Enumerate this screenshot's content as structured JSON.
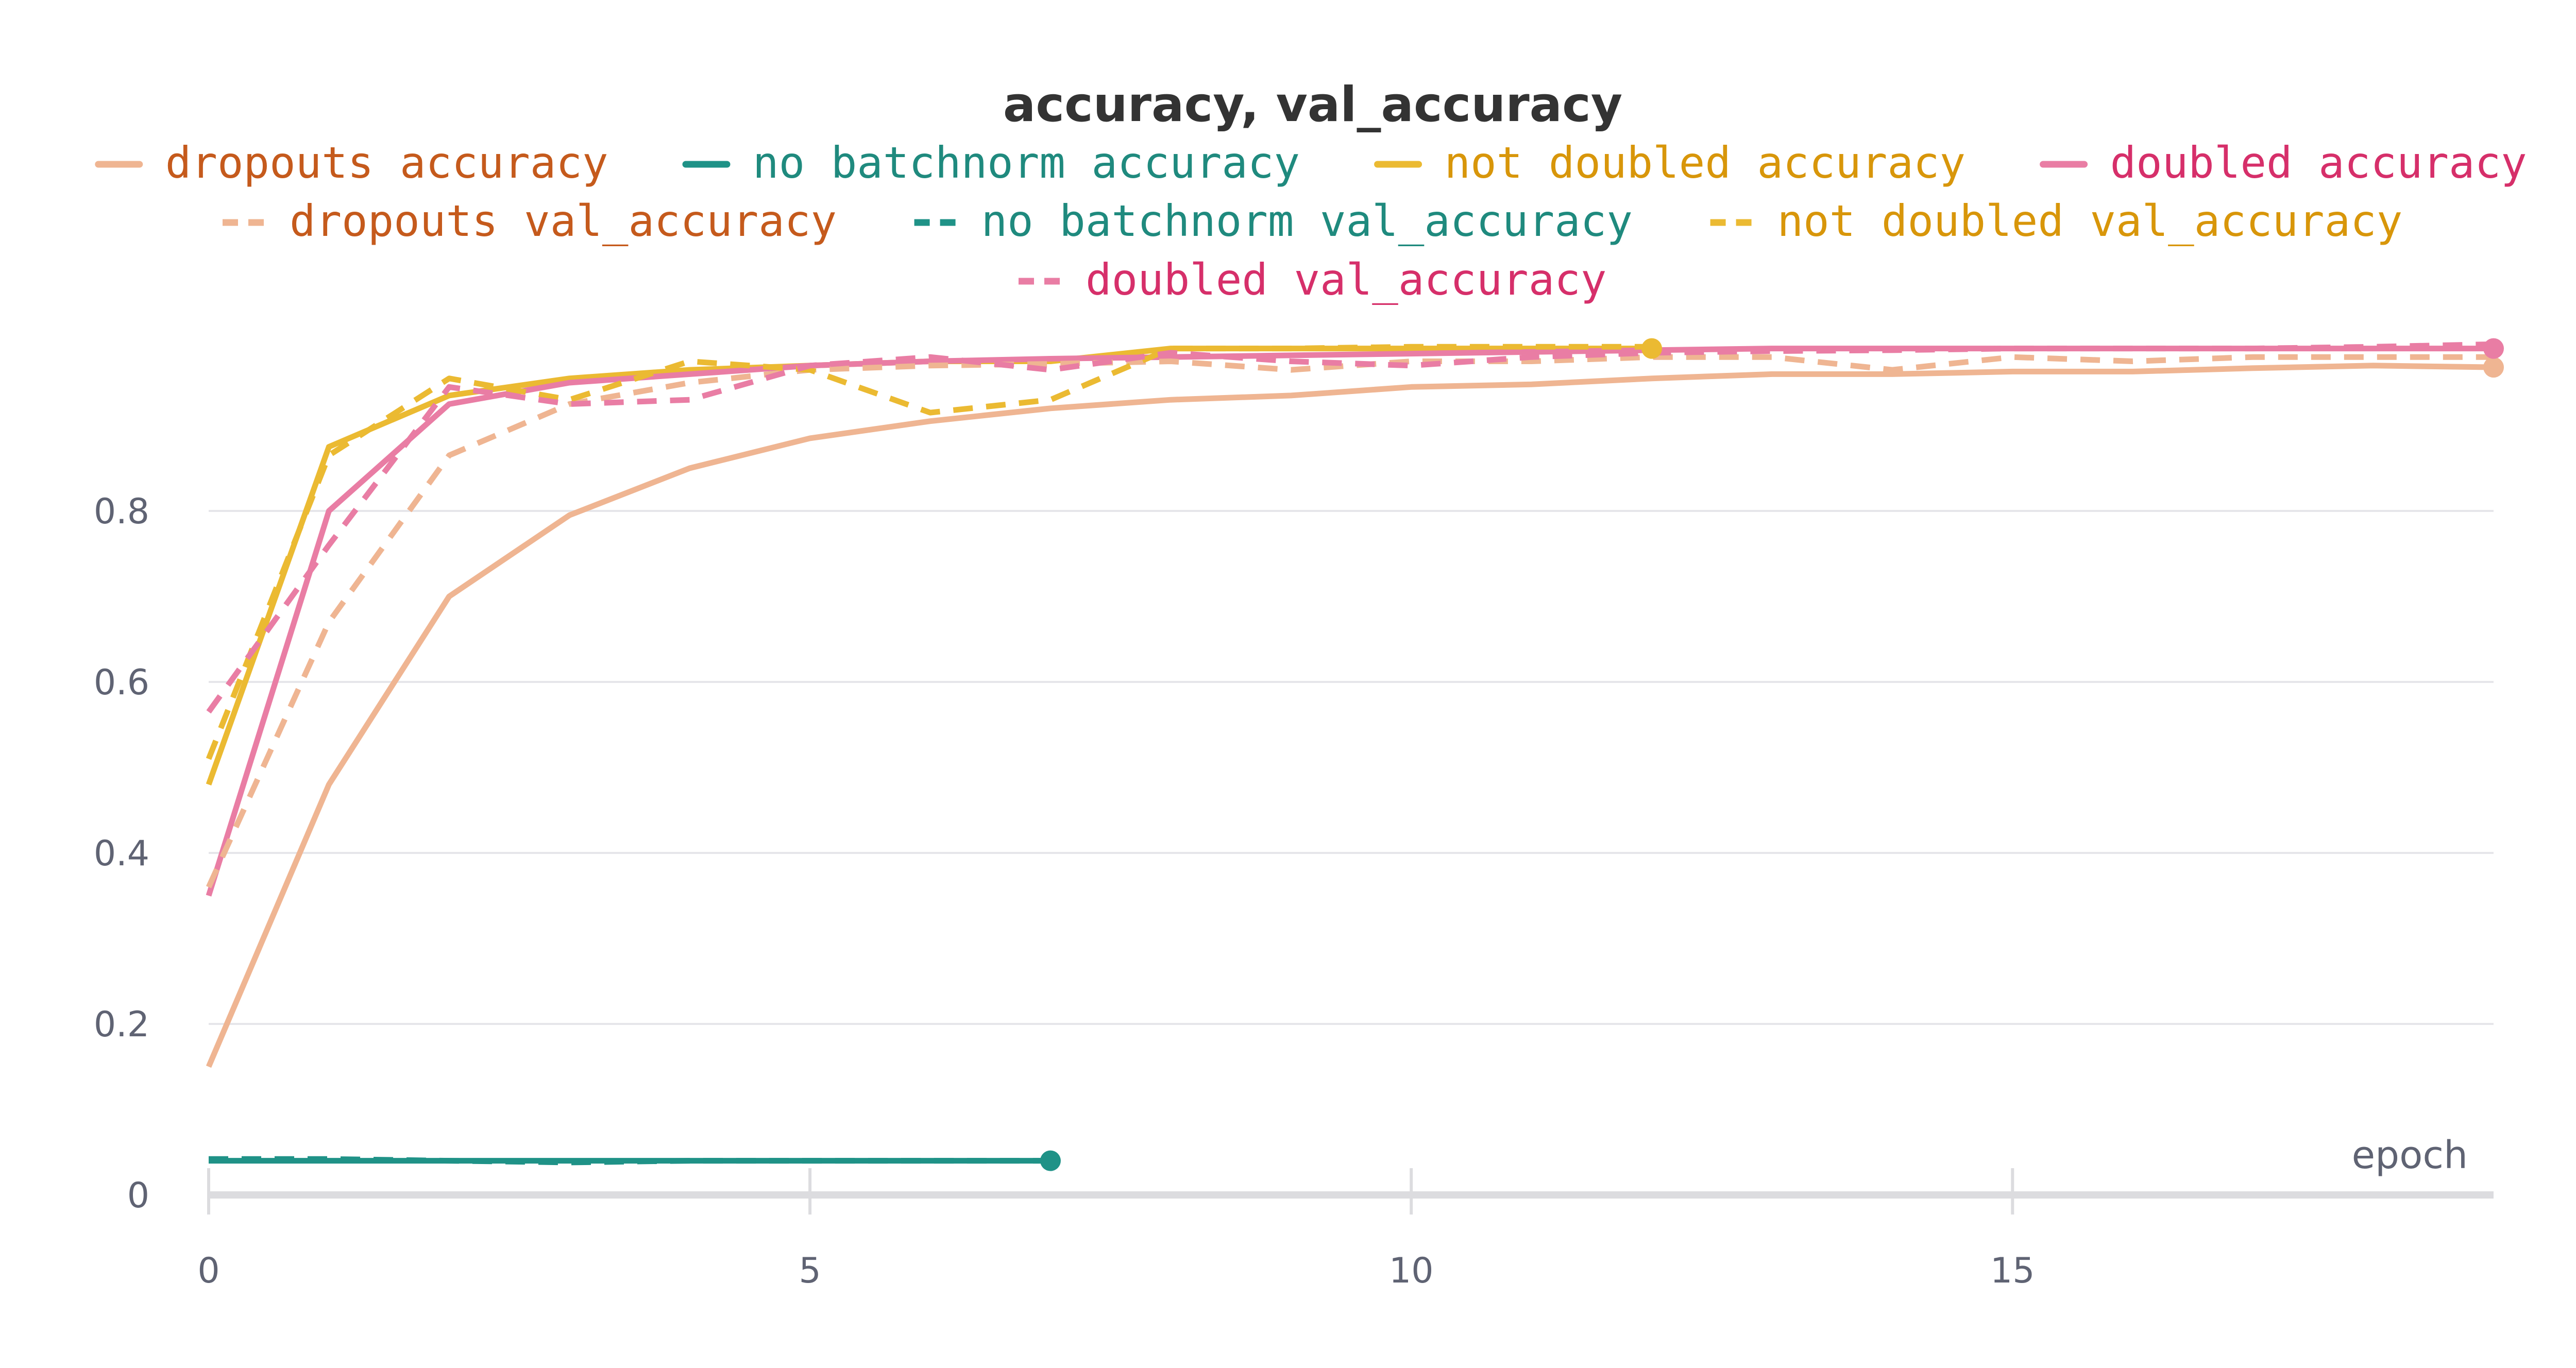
{
  "chart_data": {
    "type": "line",
    "title": "accuracy, val_accuracy",
    "xlabel": "epoch",
    "ylabel": "",
    "xlim": [
      0,
      19
    ],
    "ylim": [
      0,
      1.0
    ],
    "xticks": [
      0,
      5,
      10,
      15
    ],
    "yticks": [
      0,
      0.2,
      0.4,
      0.6,
      0.8
    ],
    "xtick_labels": [
      "0",
      "5",
      "10",
      "15"
    ],
    "ytick_labels": [
      "0",
      "0.2",
      "0.4",
      "0.6",
      "0.8"
    ],
    "grid": "horizontal",
    "legend_position": "top-center",
    "series": [
      {
        "name": "dropouts accuracy",
        "color": "#efb592",
        "text_color": "#c55a1c",
        "dash": "solid",
        "x": [
          0,
          1,
          2,
          3,
          4,
          5,
          6,
          7,
          8,
          9,
          10,
          11,
          12,
          13,
          14,
          15,
          16,
          17,
          18,
          19
        ],
        "values": [
          0.15,
          0.48,
          0.7,
          0.795,
          0.85,
          0.885,
          0.905,
          0.92,
          0.93,
          0.935,
          0.945,
          0.948,
          0.955,
          0.96,
          0.96,
          0.963,
          0.963,
          0.967,
          0.97,
          0.968
        ],
        "end_marker": true
      },
      {
        "name": "no batchnorm accuracy",
        "color": "#1f9287",
        "text_color": "#1f8a7e",
        "dash": "solid",
        "x": [
          0,
          1,
          2,
          3,
          4,
          5,
          6,
          7
        ],
        "values": [
          0.04,
          0.04,
          0.04,
          0.04,
          0.04,
          0.04,
          0.04,
          0.04
        ],
        "end_marker": true
      },
      {
        "name": "not doubled accuracy",
        "color": "#ebba32",
        "text_color": "#d8960a",
        "dash": "solid",
        "x": [
          0,
          1,
          2,
          3,
          4,
          5,
          6,
          7,
          8,
          9,
          10,
          11,
          12
        ],
        "values": [
          0.48,
          0.875,
          0.935,
          0.955,
          0.965,
          0.97,
          0.975,
          0.975,
          0.99,
          0.99,
          0.99,
          0.99,
          0.99
        ],
        "end_marker": true
      },
      {
        "name": "doubled accuracy",
        "color": "#e97da4",
        "text_color": "#d62f6a",
        "dash": "solid",
        "x": [
          0,
          1,
          2,
          3,
          4,
          5,
          6,
          7,
          8,
          9,
          10,
          11,
          12,
          13,
          14,
          15,
          16,
          17,
          18,
          19
        ],
        "values": [
          0.35,
          0.8,
          0.925,
          0.95,
          0.96,
          0.97,
          0.975,
          0.978,
          0.98,
          0.982,
          0.984,
          0.986,
          0.988,
          0.99,
          0.99,
          0.99,
          0.99,
          0.99,
          0.99,
          0.99
        ],
        "end_marker": true
      },
      {
        "name": "dropouts val_accuracy",
        "color": "#efb592",
        "text_color": "#c55a1c",
        "dash": "dashed",
        "x": [
          0,
          1,
          2,
          3,
          4,
          5,
          6,
          7,
          8,
          9,
          10,
          11,
          12,
          13,
          14,
          15,
          16,
          17,
          18,
          19
        ],
        "values": [
          0.36,
          0.67,
          0.865,
          0.925,
          0.95,
          0.965,
          0.97,
          0.972,
          0.975,
          0.965,
          0.975,
          0.975,
          0.98,
          0.98,
          0.965,
          0.98,
          0.975,
          0.98,
          0.98,
          0.98
        ],
        "end_marker": false
      },
      {
        "name": "no batchnorm val_accuracy",
        "color": "#1f9287",
        "text_color": "#1f8a7e",
        "dash": "dashed",
        "x": [
          0,
          1,
          2,
          3,
          4,
          5,
          6,
          7
        ],
        "values": [
          0.042,
          0.042,
          0.04,
          0.038,
          0.04,
          0.04,
          0.04,
          0.04
        ],
        "end_marker": false
      },
      {
        "name": "not doubled val_accuracy",
        "color": "#ebba32",
        "text_color": "#d8960a",
        "dash": "dashed",
        "x": [
          0,
          1,
          2,
          3,
          4,
          5,
          6,
          7,
          8,
          9,
          10,
          11,
          12
        ],
        "values": [
          0.51,
          0.865,
          0.955,
          0.93,
          0.975,
          0.965,
          0.915,
          0.93,
          0.99,
          0.99,
          0.992,
          0.992,
          0.992
        ],
        "end_marker": false
      },
      {
        "name": "doubled val_accuracy",
        "color": "#e97da4",
        "text_color": "#d62f6a",
        "dash": "dashed",
        "x": [
          0,
          1,
          2,
          3,
          4,
          5,
          6,
          7,
          8,
          9,
          10,
          11,
          12,
          13,
          14,
          15,
          16,
          17,
          18,
          19
        ],
        "values": [
          0.565,
          0.76,
          0.945,
          0.925,
          0.93,
          0.97,
          0.98,
          0.965,
          0.985,
          0.975,
          0.97,
          0.98,
          0.985,
          0.987,
          0.988,
          0.99,
          0.99,
          0.99,
          0.992,
          0.995
        ],
        "end_marker": false
      }
    ]
  }
}
